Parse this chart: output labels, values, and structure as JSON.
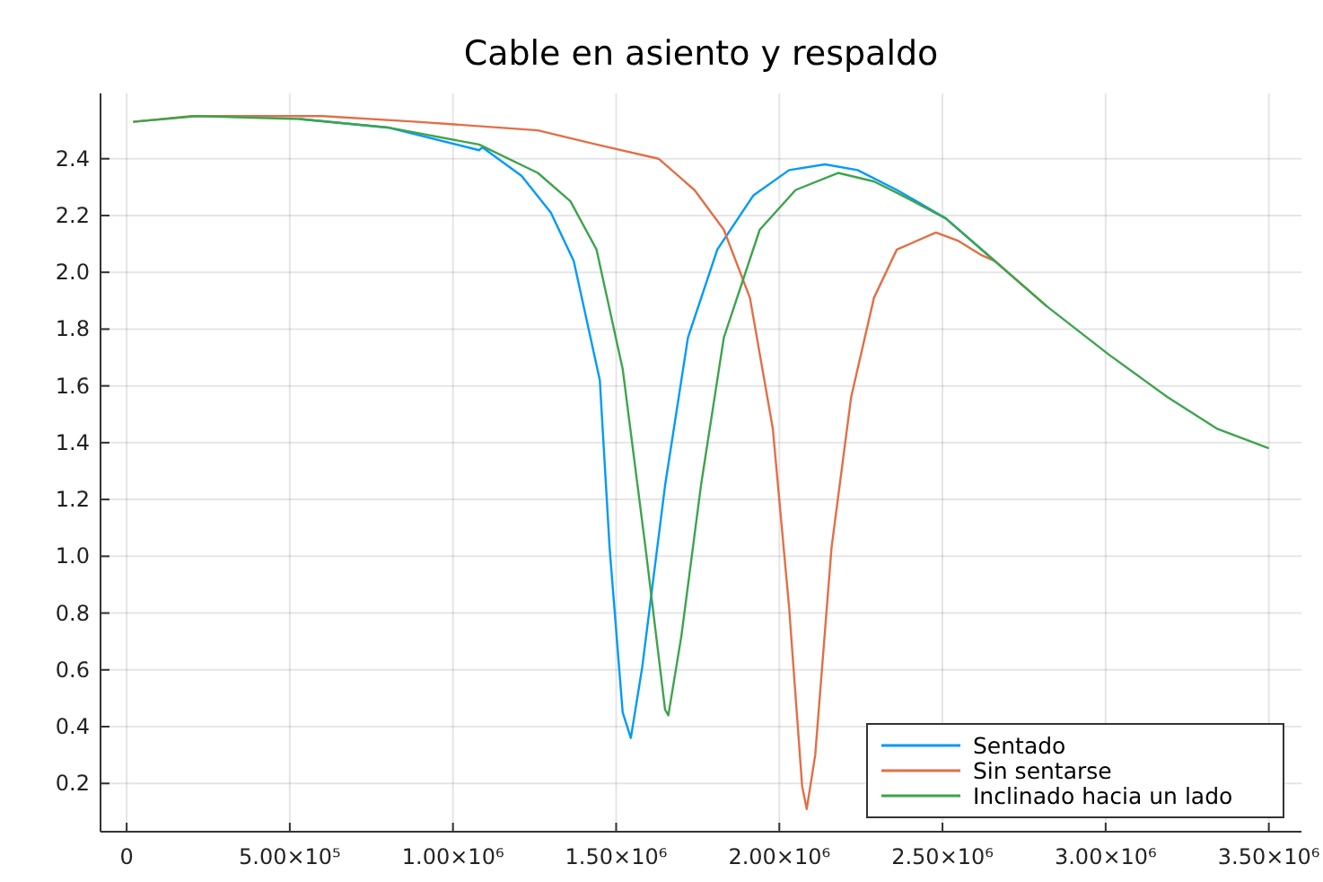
{
  "chart_data": {
    "type": "line",
    "title": "Cable en asiento y respaldo",
    "xlim": [
      -80000,
      3600000
    ],
    "ylim": [
      0.03,
      2.63
    ],
    "xticks": [
      0,
      {
        "value": 500000,
        "label": "5.00×10⁵"
      },
      {
        "value": 1000000,
        "label": "1.00×10⁶"
      },
      {
        "value": 1500000,
        "label": "1.50×10⁶"
      },
      {
        "value": 2000000,
        "label": "2.00×10⁶"
      },
      {
        "value": 2500000,
        "label": "2.50×10⁶"
      },
      {
        "value": 3000000,
        "label": "3.00×10⁶"
      },
      {
        "value": 3500000,
        "label": "3.50×10⁶"
      }
    ],
    "yticks": [
      0.2,
      0.4,
      0.6,
      0.8,
      {
        "value": 1,
        "label": "1.0"
      },
      1.2,
      1.4,
      1.6,
      1.8,
      {
        "value": 2,
        "label": "2.0"
      },
      2.2,
      2.4
    ],
    "grid": true,
    "legend": "bottom right",
    "line_style": "solid",
    "series": [
      {
        "name": "Sentado",
        "color": "#009af9",
        "x": [
          530000,
          800000,
          1080000,
          1090000,
          1210000,
          1300000,
          1370000,
          1450000,
          1480000,
          1520000,
          1545000,
          1580000,
          1650000,
          1720000,
          1810000,
          1920000,
          2030000,
          2140000,
          2240000,
          2360000,
          2510000,
          2660000
        ],
        "values": [
          2.54,
          2.51,
          2.43,
          2.44,
          2.34,
          2.21,
          2.04,
          1.62,
          1.03,
          0.45,
          0.36,
          0.61,
          1.25,
          1.77,
          2.08,
          2.27,
          2.36,
          2.38,
          2.36,
          2.29,
          2.19,
          2.04
        ]
      },
      {
        "name": "Sin sentarse",
        "color": "#e26f46",
        "x": [
          20000,
          200000,
          600000,
          890000,
          1260000,
          1440000,
          1630000,
          1740000,
          1830000,
          1910000,
          1980000,
          2030000,
          2070000,
          2084000,
          2110000,
          2160000,
          2220000,
          2290000,
          2360000,
          2480000,
          2550000,
          2620000,
          2660000,
          2820000
        ],
        "values": [
          2.53,
          2.55,
          2.55,
          2.53,
          2.5,
          2.45,
          2.4,
          2.29,
          2.15,
          1.91,
          1.45,
          0.82,
          0.19,
          0.11,
          0.3,
          1.03,
          1.56,
          1.91,
          2.08,
          2.14,
          2.11,
          2.06,
          2.04,
          1.88
        ]
      },
      {
        "name": "Inclinado hacia un lado",
        "color": "#3da44d",
        "x": [
          20000,
          215000,
          530000,
          800000,
          1080000,
          1260000,
          1360000,
          1440000,
          1520000,
          1590000,
          1650000,
          1660000,
          1700000,
          1760000,
          1830000,
          1940000,
          2050000,
          2180000,
          2290000,
          2360000,
          2510000,
          2660000,
          2820000,
          3010000,
          3190000,
          3340000,
          3500000
        ],
        "values": [
          2.53,
          2.55,
          2.54,
          2.51,
          2.45,
          2.35,
          2.25,
          2.08,
          1.66,
          1.03,
          0.46,
          0.44,
          0.72,
          1.25,
          1.77,
          2.15,
          2.29,
          2.35,
          2.32,
          2.28,
          2.19,
          2.04,
          1.88,
          1.71,
          1.56,
          1.45,
          1.38
        ]
      }
    ]
  }
}
